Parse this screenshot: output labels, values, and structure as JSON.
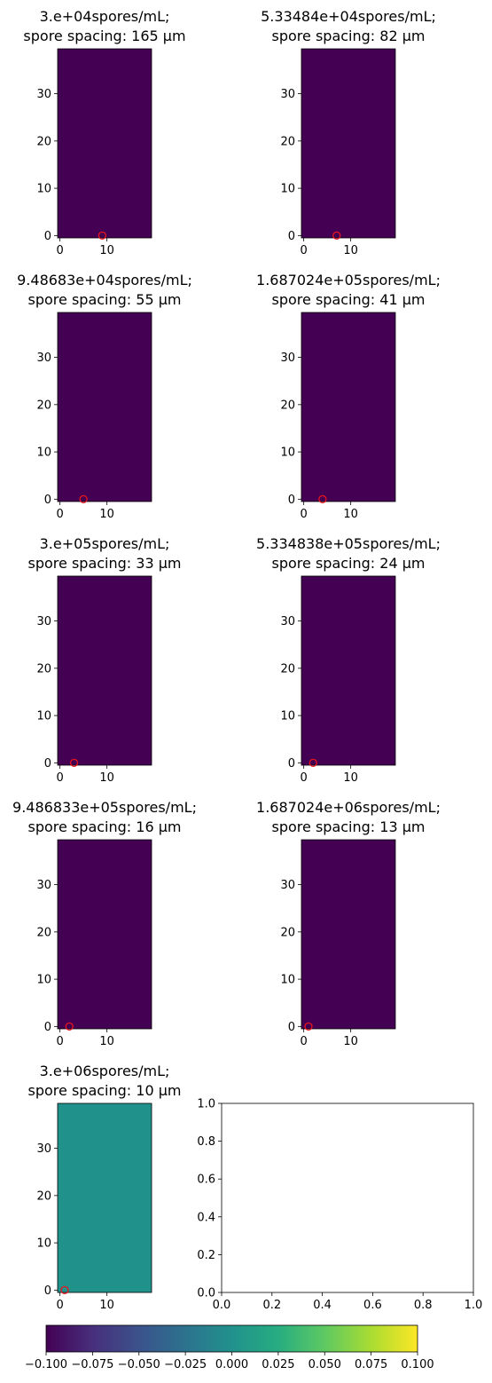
{
  "chart_data": {
    "type": "heatmap",
    "shared": {
      "xlim": [
        -0.5,
        19.5
      ],
      "ylim": [
        -0.5,
        39.5
      ],
      "xticks": [
        0,
        10
      ],
      "yticks": [
        0,
        10,
        20,
        30
      ],
      "marker": "red open circle"
    },
    "panels": [
      {
        "title_line1": "3.e+04spores/mL;",
        "title_line2": "spore spacing: 165 μm",
        "field_value": -0.1,
        "marker": {
          "x": 9,
          "y": 0
        }
      },
      {
        "title_line1": "5.33484e+04spores/mL;",
        "title_line2": "spore spacing: 82 μm",
        "field_value": -0.1,
        "marker": {
          "x": 7,
          "y": 0
        }
      },
      {
        "title_line1": "9.48683e+04spores/mL;",
        "title_line2": "spore spacing: 55 μm",
        "field_value": -0.1,
        "marker": {
          "x": 5,
          "y": 0
        }
      },
      {
        "title_line1": "1.687024e+05spores/mL;",
        "title_line2": "spore spacing: 41 μm",
        "field_value": -0.1,
        "marker": {
          "x": 4,
          "y": 0
        }
      },
      {
        "title_line1": "3.e+05spores/mL;",
        "title_line2": "spore spacing: 33 μm",
        "field_value": -0.1,
        "marker": {
          "x": 3,
          "y": 0
        }
      },
      {
        "title_line1": "5.334838e+05spores/mL;",
        "title_line2": "spore spacing: 24 μm",
        "field_value": -0.1,
        "marker": {
          "x": 2,
          "y": 0
        }
      },
      {
        "title_line1": "9.486833e+05spores/mL;",
        "title_line2": "spore spacing: 16 μm",
        "field_value": -0.1,
        "marker": {
          "x": 2,
          "y": 0
        }
      },
      {
        "title_line1": "1.687024e+06spores/mL;",
        "title_line2": "spore spacing: 13 μm",
        "field_value": -0.1,
        "marker": {
          "x": 1,
          "y": 0
        }
      },
      {
        "title_line1": "3.e+06spores/mL;",
        "title_line2": "spore spacing: 10 μm",
        "field_value": 0.0,
        "marker": {
          "x": 1,
          "y": 0
        }
      }
    ],
    "empty_axes": {
      "xlim": [
        0.0,
        1.0
      ],
      "ylim": [
        0.0,
        1.0
      ],
      "xticks": [
        "0.0",
        "0.2",
        "0.4",
        "0.6",
        "0.8",
        "1.0"
      ],
      "yticks": [
        "0.0",
        "0.2",
        "0.4",
        "0.6",
        "0.8",
        "1.0"
      ]
    },
    "colorbar": {
      "colormap": "viridis",
      "range": [
        -0.1,
        0.1
      ],
      "ticks": [
        "−0.100",
        "−0.075",
        "−0.050",
        "−0.025",
        "0.000",
        "0.025",
        "0.050",
        "0.075",
        "0.100"
      ]
    }
  }
}
